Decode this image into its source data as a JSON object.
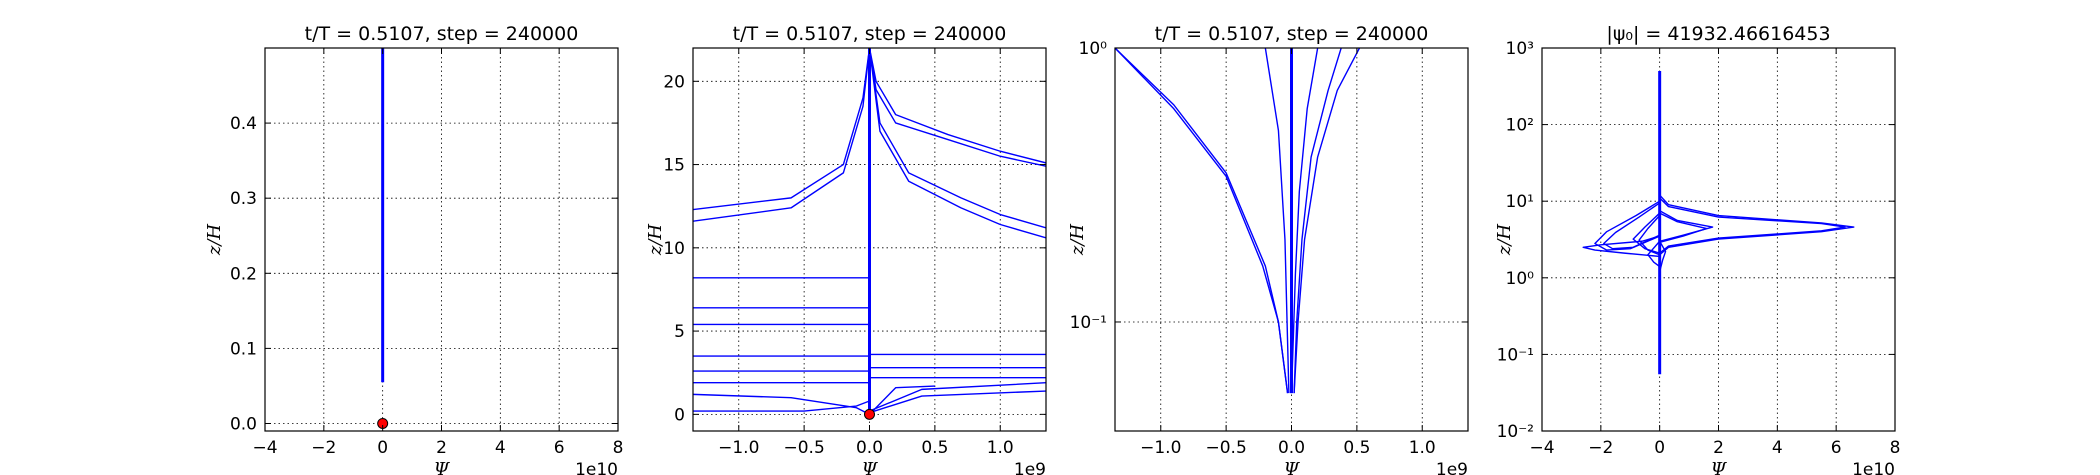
{
  "figure": {
    "background": "#ffffff",
    "line_color": "#0000ff",
    "marker_color": "#ff0000"
  },
  "chart_data": [
    {
      "type": "line",
      "title": "t/T = 0.5107, step = 240000",
      "xlabel": "Ψ",
      "ylabel": "z/H",
      "x_offset_label": "1e10",
      "xlim": [
        -4,
        8
      ],
      "ylim": [
        -0.01,
        0.5
      ],
      "yscale": "linear",
      "x_ticks": [
        -4,
        -2,
        0,
        2,
        4,
        6,
        8
      ],
      "x_tick_labels": [
        "−4",
        "−2",
        "0",
        "2",
        "4",
        "6",
        "8"
      ],
      "y_ticks": [
        0.0,
        0.1,
        0.2,
        0.3,
        0.4
      ],
      "y_tick_labels": [
        "0.0",
        "0.1",
        "0.2",
        "0.3",
        "0.4"
      ],
      "grid": true,
      "series": [
        {
          "x": [
            0,
            0
          ],
          "y": [
            0.055,
            0.5
          ]
        }
      ],
      "markers": [
        {
          "x": 0,
          "y": 0.0
        }
      ]
    },
    {
      "type": "line",
      "title": "t/T = 0.5107, step = 240000",
      "xlabel": "Ψ",
      "ylabel": "z/H",
      "x_offset_label": "1e9",
      "xlim": [
        -1.35,
        1.35
      ],
      "ylim": [
        -1,
        22
      ],
      "yscale": "linear",
      "x_ticks": [
        -1.0,
        -0.5,
        0.0,
        0.5,
        1.0
      ],
      "x_tick_labels": [
        "−1.0",
        "−0.5",
        "0.0",
        "0.5",
        "1.0"
      ],
      "y_ticks": [
        0,
        5,
        10,
        15,
        20
      ],
      "y_tick_labels": [
        "0",
        "5",
        "10",
        "15",
        "20"
      ],
      "grid": true,
      "series": [
        {
          "x": [
            -1.35,
            -0.6,
            -0.2,
            -0.05,
            0.0
          ],
          "y": [
            12.3,
            13.0,
            15.0,
            19.0,
            22.0
          ]
        },
        {
          "x": [
            -1.35,
            -0.6,
            -0.2,
            -0.05,
            0.0
          ],
          "y": [
            11.6,
            12.4,
            14.5,
            18.5,
            22.0
          ]
        },
        {
          "x": [
            0.0,
            0.05,
            0.2,
            0.6,
            1.0,
            1.35
          ],
          "y": [
            22.0,
            20.0,
            18.0,
            16.8,
            15.8,
            15.1
          ]
        },
        {
          "x": [
            0.0,
            0.05,
            0.2,
            0.6,
            1.0,
            1.35
          ],
          "y": [
            22.0,
            19.5,
            17.5,
            16.5,
            15.5,
            14.9
          ]
        },
        {
          "x": [
            0.0,
            0.08,
            0.3,
            0.7,
            1.0,
            1.35
          ],
          "y": [
            22.0,
            17.5,
            14.5,
            13.0,
            12.0,
            11.2
          ]
        },
        {
          "x": [
            0.0,
            0.08,
            0.3,
            0.7,
            1.0,
            1.35
          ],
          "y": [
            22.0,
            17.0,
            14.0,
            12.4,
            11.4,
            10.6
          ]
        },
        {
          "x": [
            -1.35,
            0.0
          ],
          "y": [
            8.2,
            8.2
          ]
        },
        {
          "x": [
            -1.35,
            0.0
          ],
          "y": [
            6.4,
            6.4
          ]
        },
        {
          "x": [
            -1.35,
            0.0
          ],
          "y": [
            5.4,
            5.4
          ]
        },
        {
          "x": [
            -1.35,
            0.0
          ],
          "y": [
            3.5,
            3.5
          ]
        },
        {
          "x": [
            -1.35,
            0.0
          ],
          "y": [
            2.6,
            2.6
          ]
        },
        {
          "x": [
            -1.35,
            0.0
          ],
          "y": [
            1.9,
            1.9
          ]
        },
        {
          "x": [
            0.0,
            1.35
          ],
          "y": [
            3.6,
            3.6
          ]
        },
        {
          "x": [
            0.0,
            1.35
          ],
          "y": [
            2.8,
            2.8
          ]
        },
        {
          "x": [
            0.0,
            1.35
          ],
          "y": [
            2.2,
            2.2
          ]
        },
        {
          "x": [
            0.0,
            0.4,
            1.35
          ],
          "y": [
            0.2,
            1.5,
            1.9
          ]
        },
        {
          "x": [
            0.0,
            0.4,
            1.35
          ],
          "y": [
            0.1,
            1.1,
            1.4
          ]
        },
        {
          "x": [
            0.0,
            0.2,
            0.5
          ],
          "y": [
            0.0,
            1.6,
            1.7
          ]
        },
        {
          "x": [
            -1.35,
            -0.6,
            -0.1,
            0.0
          ],
          "y": [
            1.2,
            1.0,
            0.4,
            0.0
          ]
        },
        {
          "x": [
            -1.35,
            -0.5,
            -0.1,
            0.0
          ],
          "y": [
            0.2,
            0.2,
            0.5,
            0.8
          ]
        },
        {
          "x": [
            0.0,
            0.0
          ],
          "y": [
            0.0,
            22.0
          ]
        }
      ],
      "markers": [
        {
          "x": 0.0,
          "y": 0.0
        }
      ]
    },
    {
      "type": "line",
      "title": "t/T = 0.5107, step = 240000",
      "xlabel": "Ψ",
      "ylabel": "z/H",
      "x_offset_label": "1e9",
      "xlim": [
        -1.35,
        1.35
      ],
      "ylim": [
        0.04,
        1.0
      ],
      "yscale": "log",
      "x_ticks": [
        -1.0,
        -0.5,
        0.0,
        0.5,
        1.0
      ],
      "x_tick_labels": [
        "−1.0",
        "−0.5",
        "0.0",
        "0.5",
        "1.0"
      ],
      "y_ticks": [
        0.1,
        1.0
      ],
      "y_tick_labels": [
        "10⁻¹",
        "10⁰"
      ],
      "grid": true,
      "series": [
        {
          "x": [
            -1.35,
            -0.9,
            -0.5,
            -0.2,
            -0.1,
            -0.03
          ],
          "y": [
            1.0,
            0.62,
            0.35,
            0.16,
            0.1,
            0.055
          ]
        },
        {
          "x": [
            -1.35,
            -0.9,
            -0.5,
            -0.22,
            -0.1,
            -0.03
          ],
          "y": [
            1.0,
            0.6,
            0.34,
            0.16,
            0.1,
            0.055
          ]
        },
        {
          "x": [
            0.02,
            0.05,
            0.1,
            0.2,
            0.35,
            0.52
          ],
          "y": [
            0.055,
            0.1,
            0.2,
            0.4,
            0.7,
            1.0
          ]
        },
        {
          "x": [
            0.02,
            0.04,
            0.08,
            0.15,
            0.28,
            0.38
          ],
          "y": [
            0.055,
            0.1,
            0.2,
            0.4,
            0.7,
            1.0
          ]
        },
        {
          "x": [
            0.0,
            0.03,
            0.06,
            0.12,
            0.2
          ],
          "y": [
            0.055,
            0.15,
            0.3,
            0.6,
            1.0
          ]
        },
        {
          "x": [
            -0.02,
            -0.05,
            -0.1,
            -0.2
          ],
          "y": [
            0.055,
            0.2,
            0.5,
            1.0
          ]
        },
        {
          "x": [
            0.0,
            0.0
          ],
          "y": [
            0.055,
            1.0
          ]
        }
      ],
      "markers": []
    },
    {
      "type": "line",
      "title": "|ψ₀| = 41932.46616453",
      "xlabel": "Ψ",
      "ylabel": "z/H",
      "x_offset_label": "1e10",
      "xlim": [
        -4,
        8
      ],
      "ylim": [
        0.01,
        1000
      ],
      "yscale": "log",
      "x_ticks": [
        -4,
        -2,
        0,
        2,
        4,
        6,
        8
      ],
      "x_tick_labels": [
        "−4",
        "−2",
        "0",
        "2",
        "4",
        "6",
        "8"
      ],
      "y_ticks": [
        0.01,
        0.1,
        1,
        10,
        100,
        1000
      ],
      "y_tick_labels": [
        "10⁻²",
        "10⁻¹",
        "10⁰",
        "10¹",
        "10²",
        "10³"
      ],
      "grid": true,
      "series": [
        {
          "x": [
            0,
            0
          ],
          "y": [
            0.055,
            500
          ]
        },
        {
          "x": [
            0,
            0.3,
            2.0,
            5.5,
            6.6,
            5.5,
            2.0,
            0.3,
            0
          ],
          "y": [
            12,
            9,
            6.5,
            5.2,
            4.6,
            4.0,
            3.2,
            2.5,
            2.0
          ]
        },
        {
          "x": [
            0,
            0.3,
            2.0,
            5.5,
            6.3,
            5.5,
            2.0,
            0.3,
            0
          ],
          "y": [
            11,
            8.5,
            6.2,
            5.1,
            4.6,
            4.1,
            3.3,
            2.6,
            2.1
          ]
        },
        {
          "x": [
            0,
            0.6,
            1.8,
            0.8,
            0
          ],
          "y": [
            7.5,
            5.6,
            4.6,
            3.6,
            3.0
          ]
        },
        {
          "x": [
            0,
            0.6,
            1.6,
            0.8,
            0
          ],
          "y": [
            7.0,
            5.4,
            4.4,
            3.5,
            2.9
          ]
        },
        {
          "x": [
            0,
            -0.8,
            -1.8,
            -2.2,
            -1.8,
            -1.0,
            0
          ],
          "y": [
            10,
            6.5,
            4.0,
            2.8,
            2.3,
            2.4,
            3.5
          ]
        },
        {
          "x": [
            0,
            -0.7,
            -1.5,
            -1.9,
            -1.6,
            -0.9,
            0
          ],
          "y": [
            9.5,
            6.2,
            3.9,
            2.8,
            2.4,
            2.5,
            3.6
          ]
        },
        {
          "x": [
            0,
            -0.5,
            -0.9,
            -0.5,
            0
          ],
          "y": [
            7.0,
            4.6,
            3.2,
            2.4,
            2.1
          ]
        },
        {
          "x": [
            0,
            -0.4,
            -0.7,
            -0.4,
            0
          ],
          "y": [
            6.5,
            4.4,
            3.1,
            2.3,
            2.0
          ]
        },
        {
          "x": [
            0,
            -0.4,
            -0.2,
            0
          ],
          "y": [
            3.0,
            2.0,
            1.6,
            1.4
          ]
        },
        {
          "x": [
            0,
            -0.6,
            -2.0,
            -2.6,
            -2.2,
            -1.2,
            0
          ],
          "y": [
            3.5,
            3.0,
            2.7,
            2.5,
            2.3,
            2.1,
            1.9
          ]
        },
        {
          "x": [
            0,
            0.2,
            0.1,
            0
          ],
          "y": [
            3.0,
            2.2,
            1.7,
            1.2
          ]
        }
      ],
      "markers": []
    }
  ]
}
